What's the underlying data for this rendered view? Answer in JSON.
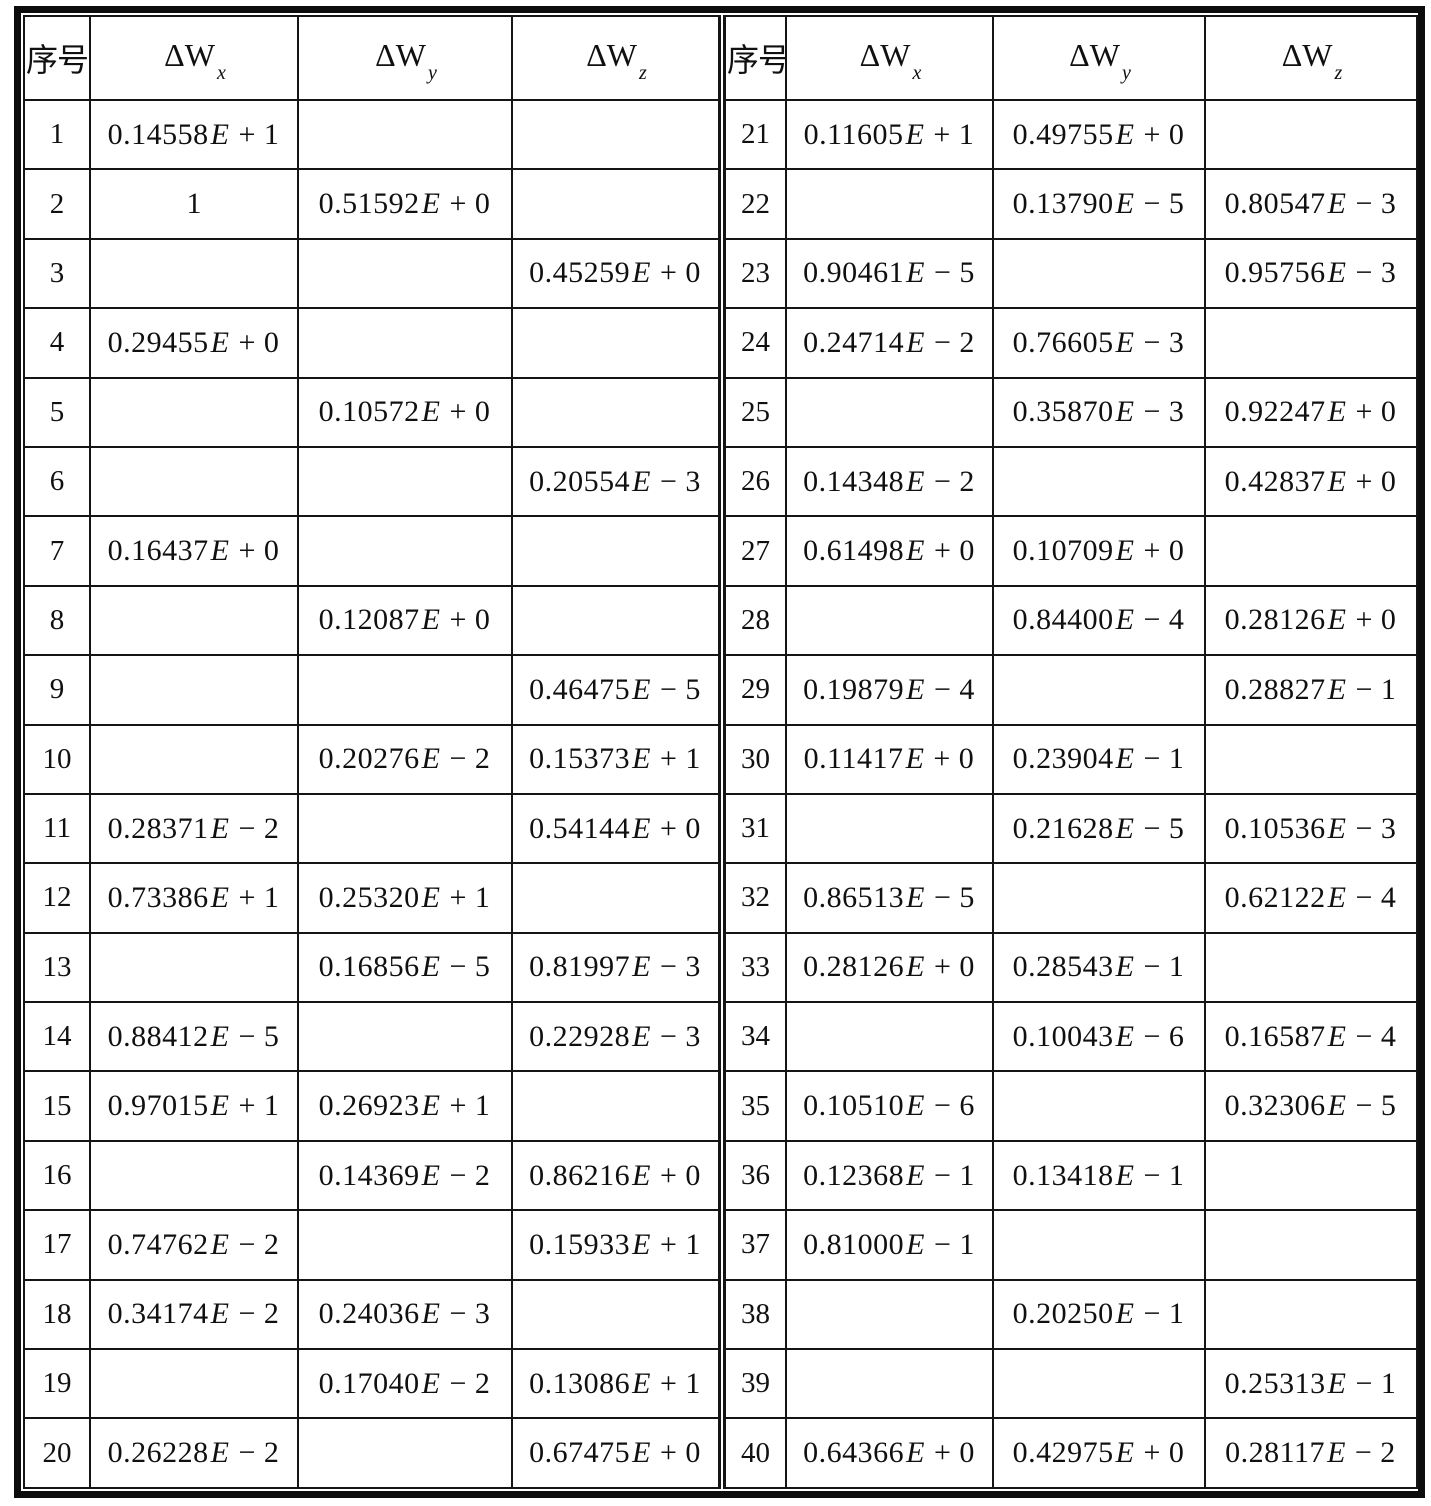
{
  "table": {
    "header": {
      "seq_label": "序号",
      "columns": [
        {
          "base": "ΔW",
          "sub": "x"
        },
        {
          "base": "ΔW",
          "sub": "y"
        },
        {
          "base": "ΔW",
          "sub": "z"
        }
      ]
    },
    "ink_color": "#151515",
    "background_color": "#ffffff",
    "entries": [
      {
        "no": "1",
        "wx": "0.14558E+1",
        "wy": "",
        "wz": ""
      },
      {
        "no": "2",
        "wx": "1",
        "wy": "0.51592E+0",
        "wz": ""
      },
      {
        "no": "3",
        "wx": "",
        "wy": "",
        "wz": "0.45259E+0"
      },
      {
        "no": "4",
        "wx": "0.29455E+0",
        "wy": "",
        "wz": ""
      },
      {
        "no": "5",
        "wx": "",
        "wy": "0.10572E+0",
        "wz": ""
      },
      {
        "no": "6",
        "wx": "",
        "wy": "",
        "wz": "0.20554E-3"
      },
      {
        "no": "7",
        "wx": "0.16437E+0",
        "wy": "",
        "wz": ""
      },
      {
        "no": "8",
        "wx": "",
        "wy": "0.12087E+0",
        "wz": ""
      },
      {
        "no": "9",
        "wx": "",
        "wy": "",
        "wz": "0.46475E-5"
      },
      {
        "no": "10",
        "wx": "",
        "wy": "0.20276E-2",
        "wz": "0.15373E+1"
      },
      {
        "no": "11",
        "wx": "0.28371E-2",
        "wy": "",
        "wz": "0.54144E+0"
      },
      {
        "no": "12",
        "wx": "0.73386E+1",
        "wy": "0.25320E+1",
        "wz": ""
      },
      {
        "no": "13",
        "wx": "",
        "wy": "0.16856E-5",
        "wz": "0.81997E-3"
      },
      {
        "no": "14",
        "wx": "0.88412E-5",
        "wy": "",
        "wz": "0.22928E-3"
      },
      {
        "no": "15",
        "wx": "0.97015E+1",
        "wy": "0.26923E+1",
        "wz": ""
      },
      {
        "no": "16",
        "wx": "",
        "wy": "0.14369E-2",
        "wz": "0.86216E+0"
      },
      {
        "no": "17",
        "wx": "0.74762E-2",
        "wy": "",
        "wz": "0.15933E+1"
      },
      {
        "no": "18",
        "wx": "0.34174E-2",
        "wy": "0.24036E-3",
        "wz": ""
      },
      {
        "no": "19",
        "wx": "",
        "wy": "0.17040E-2",
        "wz": "0.13086E+1"
      },
      {
        "no": "20",
        "wx": "0.26228E-2",
        "wy": "",
        "wz": "0.67475E+0"
      },
      {
        "no": "21",
        "wx": "0.11605E+1",
        "wy": "0.49755E+0",
        "wz": ""
      },
      {
        "no": "22",
        "wx": "",
        "wy": "0.13790E-5",
        "wz": "0.80547E-3"
      },
      {
        "no": "23",
        "wx": "0.90461E-5",
        "wy": "",
        "wz": "0.95756E-3"
      },
      {
        "no": "24",
        "wx": "0.24714E-2",
        "wy": "0.76605E-3",
        "wz": ""
      },
      {
        "no": "25",
        "wx": "",
        "wy": "0.35870E-3",
        "wz": "0.92247E+0"
      },
      {
        "no": "26",
        "wx": "0.14348E-2",
        "wy": "",
        "wz": "0.42837E+0"
      },
      {
        "no": "27",
        "wx": "0.61498E+0",
        "wy": "0.10709E+0",
        "wz": ""
      },
      {
        "no": "28",
        "wx": "",
        "wy": "0.84400E-4",
        "wz": "0.28126E+0"
      },
      {
        "no": "29",
        "wx": "0.19879E-4",
        "wy": "",
        "wz": "0.28827E-1"
      },
      {
        "no": "30",
        "wx": "0.11417E+0",
        "wy": "0.23904E-1",
        "wz": ""
      },
      {
        "no": "31",
        "wx": "",
        "wy": "0.21628E-5",
        "wz": "0.10536E-3"
      },
      {
        "no": "32",
        "wx": "0.86513E-5",
        "wy": "",
        "wz": "0.62122E-4"
      },
      {
        "no": "33",
        "wx": "0.28126E+0",
        "wy": "0.28543E-1",
        "wz": ""
      },
      {
        "no": "34",
        "wx": "",
        "wy": "0.10043E-6",
        "wz": "0.16587E-4"
      },
      {
        "no": "35",
        "wx": "0.10510E-6",
        "wy": "",
        "wz": "0.32306E-5"
      },
      {
        "no": "36",
        "wx": "0.12368E-1",
        "wy": "0.13418E-1",
        "wz": ""
      },
      {
        "no": "37",
        "wx": "0.81000E-1",
        "wy": "",
        "wz": ""
      },
      {
        "no": "38",
        "wx": "",
        "wy": "0.20250E-1",
        "wz": ""
      },
      {
        "no": "39",
        "wx": "",
        "wy": "",
        "wz": "0.25313E-1"
      },
      {
        "no": "40",
        "wx": "0.64366E+0",
        "wy": "0.42975E+0",
        "wz": "0.28117E-2"
      }
    ]
  }
}
